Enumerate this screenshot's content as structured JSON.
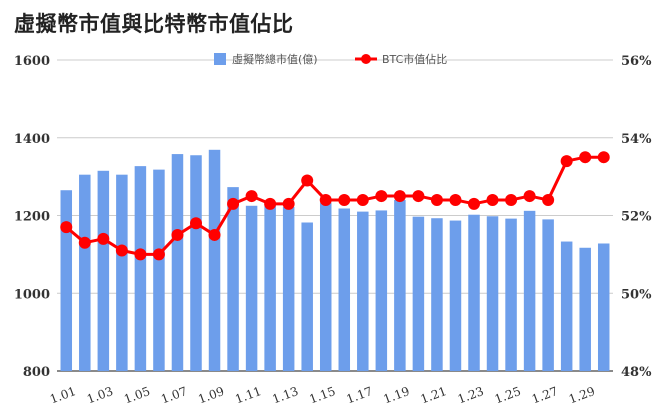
{
  "chart_data": {
    "type": "bar",
    "title": "虛擬幣市值與比特幣市值佔比",
    "categories": [
      "1.01",
      "1.02",
      "1.03",
      "1.04",
      "1.05",
      "1.06",
      "1.07",
      "1.08",
      "1.09",
      "1.10",
      "1.11",
      "1.12",
      "1.13",
      "1.14",
      "1.15",
      "1.16",
      "1.17",
      "1.18",
      "1.19",
      "1.20",
      "1.21",
      "1.22",
      "1.23",
      "1.24",
      "1.25",
      "1.26",
      "1.27",
      "1.28",
      "1.29",
      "1.30"
    ],
    "x_tick_labels": [
      "1.01",
      "1.03",
      "1.05",
      "1.07",
      "1.09",
      "1.11",
      "1.13",
      "1.15",
      "1.17",
      "1.19",
      "1.21",
      "1.23",
      "1.25",
      "1.27",
      "1.29"
    ],
    "series": [
      {
        "name": "虛擬幣總市值(億)",
        "type": "bar",
        "axis": "left",
        "color": "#6d9eeb",
        "values": [
          1265,
          1305,
          1315,
          1305,
          1327,
          1318,
          1358,
          1355,
          1369,
          1273,
          1225,
          1225,
          1222,
          1182,
          1233,
          1218,
          1210,
          1213,
          1240,
          1197,
          1193,
          1187,
          1202,
          1198,
          1192,
          1212,
          1190,
          1133,
          1117,
          1128
        ]
      },
      {
        "name": "BTC市值佔比",
        "type": "line",
        "axis": "right",
        "color": "#ff0000",
        "values": [
          51.7,
          51.3,
          51.4,
          51.1,
          51.0,
          51.0,
          51.5,
          51.8,
          51.5,
          52.3,
          52.5,
          52.3,
          52.3,
          52.9,
          52.4,
          52.4,
          52.4,
          52.5,
          52.5,
          52.5,
          52.4,
          52.4,
          52.3,
          52.4,
          52.4,
          52.5,
          52.4,
          53.4,
          53.5,
          53.5
        ]
      }
    ],
    "y_left": {
      "ylim": [
        800,
        1600
      ],
      "ticks": [
        "800",
        "1000",
        "1200",
        "1400",
        "1600"
      ]
    },
    "y_right": {
      "ylim": [
        48,
        56
      ],
      "ticks": [
        "48%",
        "50%",
        "52%",
        "54%",
        "56%"
      ]
    },
    "grid": true,
    "legend": "top-center"
  }
}
